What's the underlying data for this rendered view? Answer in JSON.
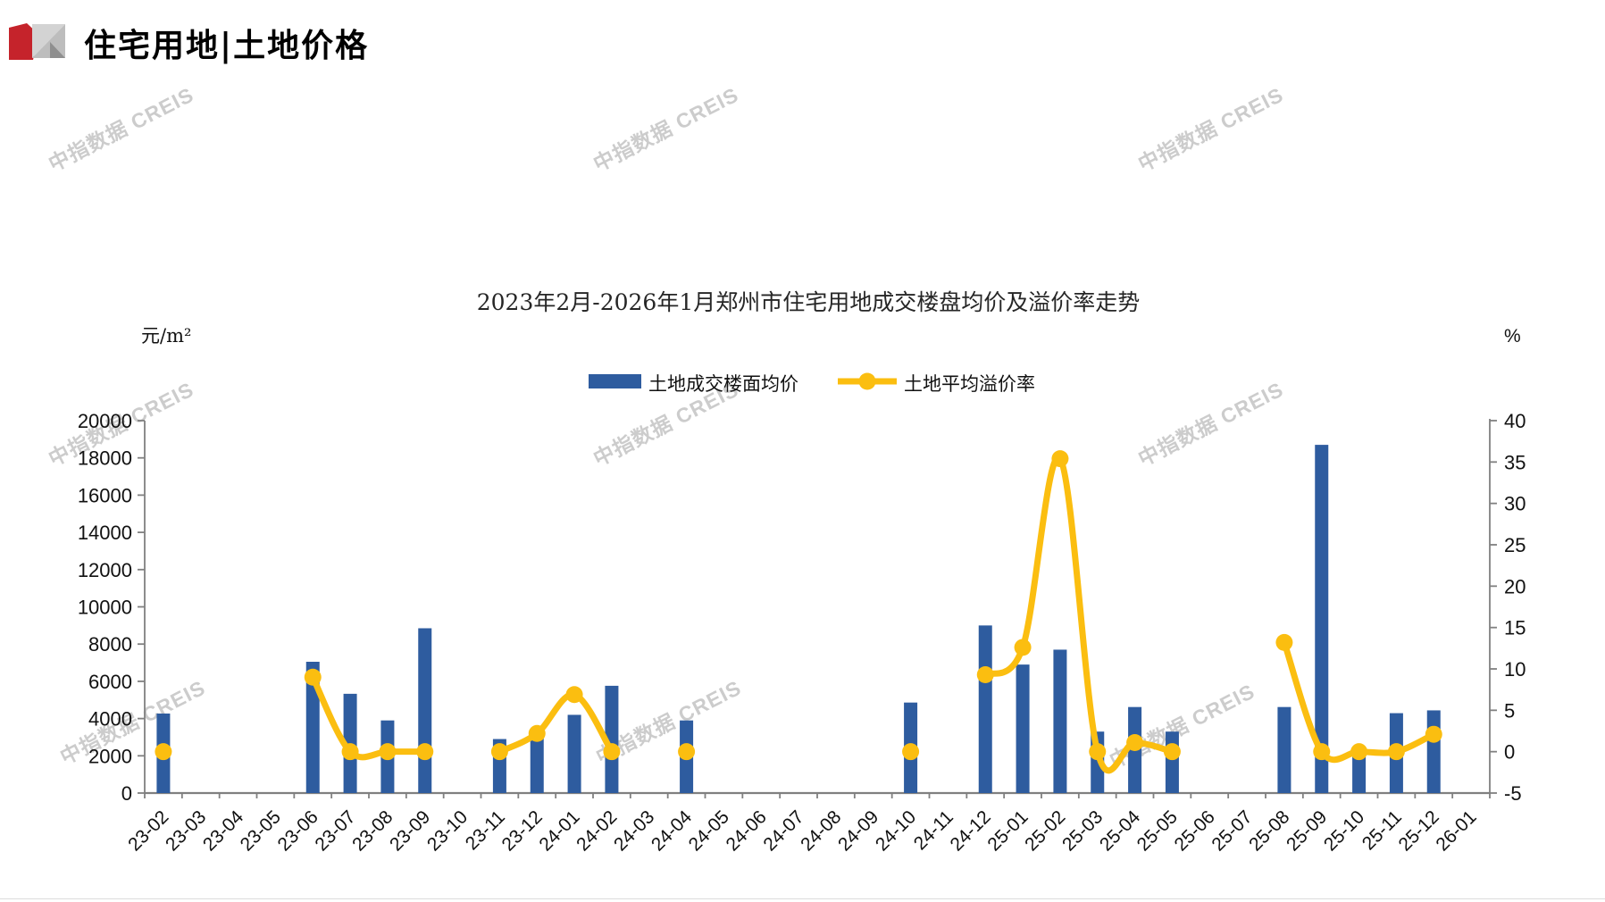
{
  "header": {
    "title": "住宅用地|土地价格"
  },
  "watermark": {
    "text": "中指数据 CREIS"
  },
  "chart_data": {
    "type": "combo-bar-line",
    "title": "2023年2月-2026年1月郑州市住宅用地成交楼盘均价及溢价率走势",
    "left_axis": {
      "unit": "元/m²",
      "min": 0,
      "max": 20000,
      "step": 2000
    },
    "right_axis": {
      "unit": "%",
      "min": -5,
      "max": 40,
      "step": 5
    },
    "grid": false,
    "legend_position": "top-center",
    "categories": [
      "23-02",
      "23-03",
      "23-04",
      "23-05",
      "23-06",
      "23-07",
      "23-08",
      "23-09",
      "23-10",
      "23-11",
      "23-12",
      "24-01",
      "24-02",
      "24-03",
      "24-04",
      "24-05",
      "24-06",
      "24-07",
      "24-08",
      "24-09",
      "24-10",
      "24-11",
      "24-12",
      "25-01",
      "25-02",
      "25-03",
      "25-04",
      "25-05",
      "25-06",
      "25-07",
      "25-08",
      "25-09",
      "25-10",
      "25-11",
      "25-12",
      "26-01"
    ],
    "series": [
      {
        "name": "土地成交楼面均价",
        "type": "bar",
        "axis": "left",
        "color": "#2E5C9F",
        "values": [
          4270,
          null,
          null,
          null,
          7050,
          5330,
          3900,
          8850,
          null,
          2900,
          3100,
          4200,
          5760,
          null,
          3900,
          null,
          null,
          null,
          null,
          null,
          4860,
          null,
          9000,
          6900,
          7700,
          3300,
          4620,
          3300,
          null,
          null,
          4620,
          18700,
          2240,
          4290,
          4440,
          null
        ]
      },
      {
        "name": "土地平均溢价率",
        "type": "line",
        "axis": "right",
        "color": "#FBBE10",
        "values": [
          0,
          null,
          null,
          null,
          9,
          0,
          0,
          0,
          null,
          0,
          2.2,
          6.9,
          0,
          null,
          0,
          null,
          null,
          null,
          null,
          null,
          0,
          null,
          9.3,
          12.6,
          35.4,
          0,
          1.1,
          0,
          null,
          null,
          13.2,
          0,
          0,
          0,
          2.1,
          null
        ]
      }
    ]
  }
}
